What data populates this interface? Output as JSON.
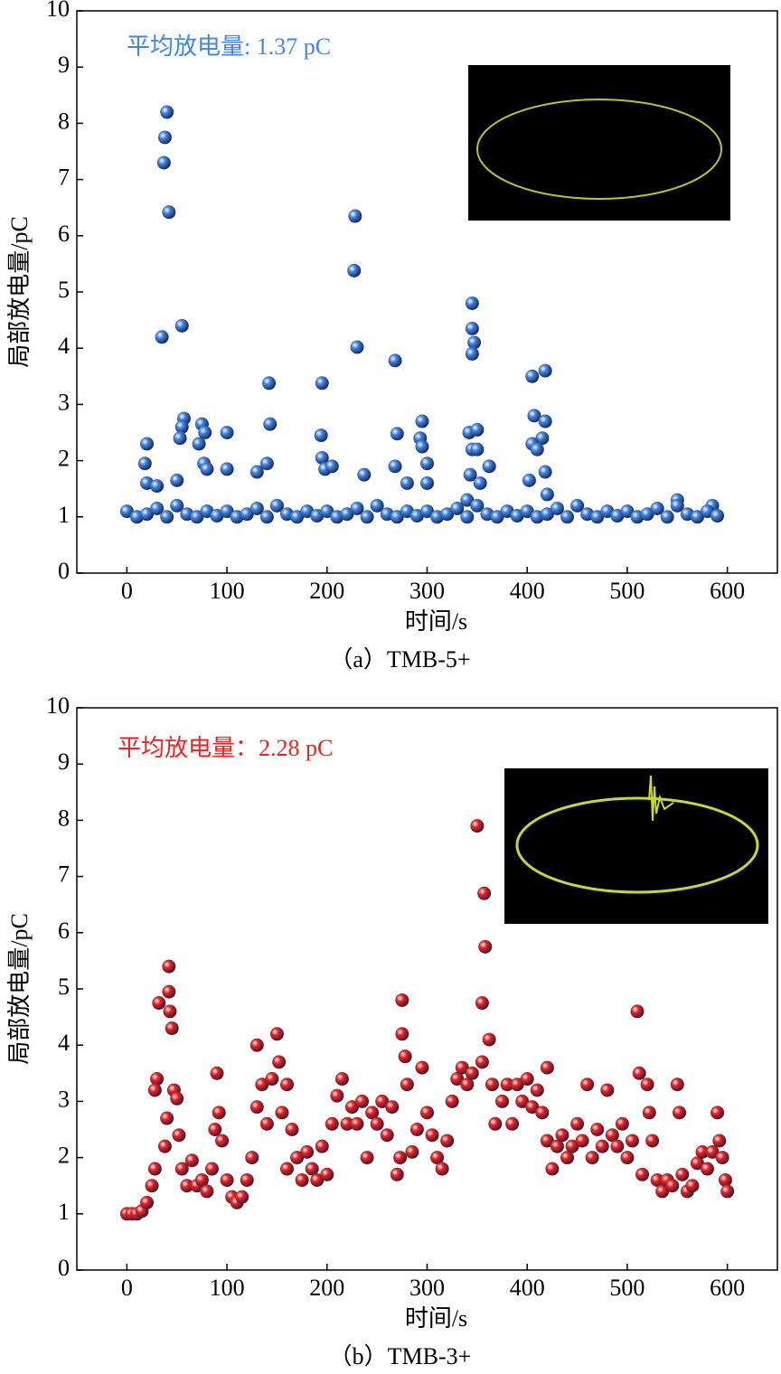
{
  "chart_data": [
    {
      "type": "scatter",
      "caption": "（a）TMB-5+",
      "annotation": "平均放电量: 1.37 pC",
      "xlabel": "时间/s",
      "ylabel": "局部放电量/pC",
      "color": "#3f86e8",
      "xlim": [
        -50,
        650
      ],
      "ylim": [
        0,
        10
      ],
      "xticks": [
        0,
        100,
        200,
        300,
        400,
        500,
        600
      ],
      "yticks": [
        0,
        1,
        2,
        3,
        4,
        5,
        6,
        7,
        8,
        9,
        10
      ],
      "x": [
        37,
        38,
        40,
        42,
        35,
        55,
        57,
        55,
        53,
        20,
        18,
        20,
        30,
        50,
        72,
        75,
        78,
        77,
        80,
        100,
        100,
        130,
        142,
        143,
        140,
        195,
        194,
        195,
        198,
        205,
        228,
        227,
        230,
        237,
        268,
        270,
        268,
        280,
        295,
        293,
        295,
        300,
        300,
        345,
        345,
        347,
        345,
        342,
        350,
        345,
        350,
        343,
        353,
        362,
        340,
        405,
        418,
        407,
        418,
        415,
        405,
        410,
        418,
        402,
        420,
        550,
        585,
        0,
        10,
        20,
        30,
        40,
        50,
        60,
        70,
        80,
        90,
        100,
        110,
        120,
        130,
        140,
        150,
        160,
        170,
        180,
        190,
        200,
        210,
        220,
        230,
        240,
        250,
        260,
        270,
        280,
        290,
        300,
        310,
        320,
        330,
        340,
        350,
        360,
        370,
        380,
        390,
        400,
        410,
        420,
        430,
        440,
        450,
        460,
        470,
        480,
        490,
        500,
        510,
        520,
        530,
        540,
        550,
        560,
        570,
        580,
        590
      ],
      "values": [
        7.3,
        7.75,
        8.2,
        6.42,
        4.2,
        4.4,
        2.75,
        2.6,
        2.4,
        2.3,
        1.95,
        1.6,
        1.55,
        1.65,
        2.3,
        2.65,
        2.5,
        1.95,
        1.85,
        2.5,
        1.85,
        1.8,
        3.38,
        2.65,
        1.95,
        3.38,
        2.45,
        2.05,
        1.85,
        1.9,
        6.35,
        5.38,
        4.02,
        1.75,
        3.78,
        2.48,
        1.9,
        1.6,
        2.7,
        2.4,
        2.25,
        1.95,
        1.6,
        4.8,
        4.35,
        4.1,
        3.9,
        2.5,
        2.55,
        2.2,
        2.2,
        1.75,
        1.6,
        1.9,
        1.3,
        3.5,
        3.6,
        2.8,
        2.7,
        2.4,
        2.3,
        2.2,
        1.8,
        1.65,
        1.4,
        1.3,
        1.2,
        1.1,
        1.0,
        1.05,
        1.15,
        1.0,
        1.2,
        1.05,
        1.0,
        1.1,
        1.02,
        1.1,
        1.0,
        1.05,
        1.15,
        1.0,
        1.2,
        1.05,
        1.0,
        1.1,
        1.02,
        1.1,
        1.0,
        1.05,
        1.15,
        1.0,
        1.2,
        1.05,
        1.0,
        1.1,
        1.02,
        1.1,
        1.0,
        1.05,
        1.15,
        1.0,
        1.2,
        1.05,
        1.0,
        1.1,
        1.02,
        1.1,
        1.0,
        1.05,
        1.15,
        1.0,
        1.2,
        1.05,
        1.0,
        1.1,
        1.02,
        1.1,
        1.0,
        1.05,
        1.15,
        1.0,
        1.2,
        1.05,
        1.0,
        1.1,
        1.02
      ]
    },
    {
      "type": "scatter",
      "caption": "（b）TMB-3+",
      "annotation": "平均放电量：2.28 pC",
      "xlabel": "时间/s",
      "ylabel": "局部放电量/pC",
      "color": "#ee2222",
      "xlim": [
        -50,
        650
      ],
      "ylim": [
        0,
        10
      ],
      "xticks": [
        0,
        100,
        200,
        300,
        400,
        500,
        600
      ],
      "yticks": [
        0,
        1,
        2,
        3,
        4,
        5,
        6,
        7,
        8,
        9,
        10
      ],
      "x": [
        0,
        5,
        10,
        15,
        20,
        25,
        28,
        30,
        28,
        32,
        38,
        40,
        42,
        42,
        43,
        45,
        47,
        50,
        52,
        55,
        60,
        65,
        70,
        75,
        80,
        85,
        88,
        90,
        92,
        95,
        100,
        105,
        110,
        115,
        120,
        125,
        130,
        130,
        135,
        140,
        145,
        150,
        152,
        155,
        160,
        160,
        165,
        170,
        175,
        180,
        185,
        190,
        195,
        200,
        205,
        210,
        215,
        220,
        225,
        230,
        235,
        240,
        245,
        250,
        255,
        260,
        265,
        270,
        273,
        275,
        275,
        278,
        280,
        285,
        290,
        295,
        300,
        305,
        310,
        315,
        320,
        325,
        330,
        335,
        340,
        345,
        350,
        355,
        357,
        358,
        355,
        362,
        365,
        368,
        375,
        380,
        385,
        390,
        395,
        400,
        405,
        410,
        415,
        420,
        420,
        425,
        430,
        435,
        440,
        445,
        450,
        455,
        460,
        465,
        470,
        475,
        480,
        485,
        490,
        495,
        500,
        505,
        510,
        512,
        515,
        520,
        522,
        525,
        530,
        535,
        540,
        545,
        550,
        552,
        555,
        560,
        565,
        570,
        575,
        580,
        585,
        590,
        592,
        595,
        598,
        600
      ],
      "values": [
        1.0,
        1.0,
        1.0,
        1.05,
        1.2,
        1.5,
        1.8,
        3.4,
        3.2,
        4.75,
        2.2,
        2.7,
        5.4,
        4.95,
        4.6,
        4.3,
        3.2,
        3.05,
        2.4,
        1.8,
        1.5,
        1.95,
        1.5,
        1.6,
        1.4,
        1.8,
        2.5,
        3.5,
        2.8,
        2.3,
        1.6,
        1.3,
        1.2,
        1.3,
        1.6,
        2.0,
        4.0,
        2.9,
        3.3,
        2.6,
        3.4,
        4.2,
        3.7,
        2.8,
        3.3,
        1.8,
        2.5,
        2.0,
        1.6,
        2.1,
        1.8,
        1.6,
        2.2,
        1.7,
        2.6,
        3.1,
        3.4,
        2.6,
        2.9,
        2.6,
        3.0,
        2.0,
        2.8,
        2.6,
        3.0,
        2.4,
        2.9,
        1.7,
        2.0,
        4.8,
        4.2,
        3.8,
        3.3,
        2.1,
        2.5,
        3.6,
        2.8,
        2.4,
        2.0,
        1.8,
        2.3,
        3.0,
        3.4,
        3.6,
        3.3,
        3.5,
        7.9,
        3.7,
        6.7,
        5.75,
        4.75,
        4.1,
        3.3,
        2.6,
        3.0,
        3.3,
        2.6,
        3.3,
        3.0,
        3.4,
        2.9,
        3.2,
        2.8,
        3.6,
        2.3,
        1.8,
        2.2,
        2.4,
        2.0,
        2.2,
        2.6,
        2.3,
        3.3,
        2.0,
        2.5,
        2.2,
        3.2,
        2.4,
        2.2,
        2.6,
        2.0,
        2.3,
        4.6,
        3.5,
        1.7,
        3.3,
        2.8,
        2.3,
        1.6,
        1.4,
        1.6,
        1.5,
        3.3,
        2.8,
        1.7,
        1.4,
        1.5,
        1.9,
        2.1,
        1.8,
        2.1,
        2.8,
        2.3,
        2.0,
        1.6,
        1.4
      ]
    }
  ]
}
